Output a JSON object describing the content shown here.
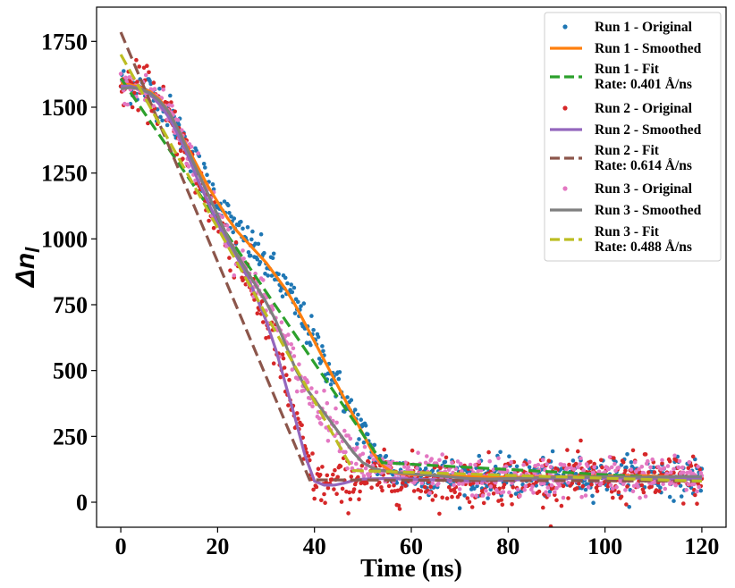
{
  "chart_data": {
    "type": "line",
    "title": "",
    "xlabel": "Time (ns)",
    "ylabel_symbol": "Δn",
    "ylabel_subscript": "l",
    "xlim": [
      -5,
      125
    ],
    "ylim": [
      -95,
      1880
    ],
    "xticks": [
      0,
      20,
      40,
      60,
      80,
      100,
      120
    ],
    "yticks": [
      0,
      250,
      500,
      750,
      1000,
      1250,
      1500,
      1750
    ],
    "legend_position": "top-right",
    "runs": [
      {
        "original": {
          "name": "Run 1 - Original",
          "color": "#1f77b4",
          "style": "points",
          "noise": 35
        },
        "smoothed": {
          "name": "Run 1 - Smoothed",
          "color": "#ff7f0e",
          "style": "solid",
          "x": [
            0,
            2,
            4,
            6,
            8,
            10,
            12,
            14,
            16,
            18,
            20,
            22,
            24,
            26,
            28,
            30,
            32,
            34,
            36,
            38,
            40,
            42,
            44,
            46,
            48,
            50,
            52,
            54,
            56,
            58,
            60,
            64,
            68,
            72,
            76,
            80,
            84,
            88,
            92,
            96,
            100,
            104,
            108,
            112,
            116,
            120
          ],
          "y": [
            1590,
            1585,
            1575,
            1560,
            1530,
            1480,
            1410,
            1340,
            1270,
            1200,
            1140,
            1080,
            1030,
            990,
            950,
            910,
            860,
            810,
            750,
            680,
            610,
            540,
            470,
            400,
            330,
            260,
            190,
            140,
            115,
            108,
            105,
            103,
            100,
            98,
            96,
            95,
            95,
            96,
            97,
            98,
            100,
            101,
            100,
            98,
            96,
            95
          ]
        },
        "fit": {
          "name": "Run 1 - Fit",
          "rate": "Rate: 0.401 Å/ns",
          "color": "#2ca02c",
          "style": "dashed",
          "x": [
            0,
            54,
            120
          ],
          "y": [
            1610,
            150,
            85
          ]
        }
      },
      {
        "original": {
          "name": "Run 2 - Original",
          "color": "#d62728",
          "style": "points",
          "noise": 45
        },
        "smoothed": {
          "name": "Run 2 - Smoothed",
          "color": "#9467bd",
          "style": "solid",
          "x": [
            0,
            2,
            4,
            6,
            8,
            10,
            12,
            14,
            16,
            18,
            20,
            22,
            24,
            26,
            28,
            30,
            32,
            34,
            36,
            38,
            40,
            42,
            44,
            46,
            48,
            50,
            55,
            60,
            65,
            70,
            75,
            80,
            85,
            90,
            95,
            100,
            105,
            110,
            115,
            120
          ],
          "y": [
            1580,
            1580,
            1570,
            1550,
            1510,
            1460,
            1390,
            1310,
            1220,
            1140,
            1060,
            990,
            930,
            860,
            780,
            690,
            580,
            450,
            320,
            180,
            80,
            65,
            65,
            72,
            82,
            88,
            90,
            88,
            85,
            82,
            82,
            84,
            87,
            90,
            92,
            93,
            92,
            90,
            89,
            88
          ]
        },
        "fit": {
          "name": "Run 2 - Fit",
          "rate": "Rate: 0.614 Å/ns",
          "color": "#8c564b",
          "style": "dashed",
          "x": [
            0,
            39,
            120
          ],
          "y": [
            1785,
            85,
            80
          ]
        }
      },
      {
        "original": {
          "name": "Run 3 - Original",
          "color": "#e377c2",
          "style": "points",
          "noise": 35
        },
        "smoothed": {
          "name": "Run 3 - Smoothed",
          "color": "#7f7f7f",
          "style": "solid",
          "x": [
            0,
            2,
            4,
            6,
            8,
            10,
            12,
            14,
            16,
            18,
            20,
            22,
            24,
            26,
            28,
            30,
            32,
            34,
            36,
            38,
            40,
            42,
            44,
            46,
            48,
            50,
            52,
            54,
            56,
            60,
            64,
            68,
            72,
            76,
            80,
            84,
            88,
            92,
            96,
            100,
            104,
            108,
            112,
            116,
            120
          ],
          "y": [
            1570,
            1575,
            1570,
            1555,
            1525,
            1480,
            1410,
            1330,
            1250,
            1170,
            1090,
            1010,
            940,
            880,
            820,
            760,
            690,
            600,
            510,
            440,
            390,
            340,
            290,
            240,
            190,
            150,
            130,
            120,
            115,
            108,
            102,
            96,
            90,
            88,
            90,
            92,
            94,
            95,
            96,
            97,
            96,
            95,
            96,
            98,
            97
          ]
        },
        "fit": {
          "name": "Run 3 - Fit",
          "rate": "Rate: 0.488 Å/ns",
          "color": "#bcbd22",
          "style": "dashed",
          "x": [
            0,
            48,
            120
          ],
          "y": [
            1700,
            120,
            80
          ]
        }
      }
    ]
  }
}
